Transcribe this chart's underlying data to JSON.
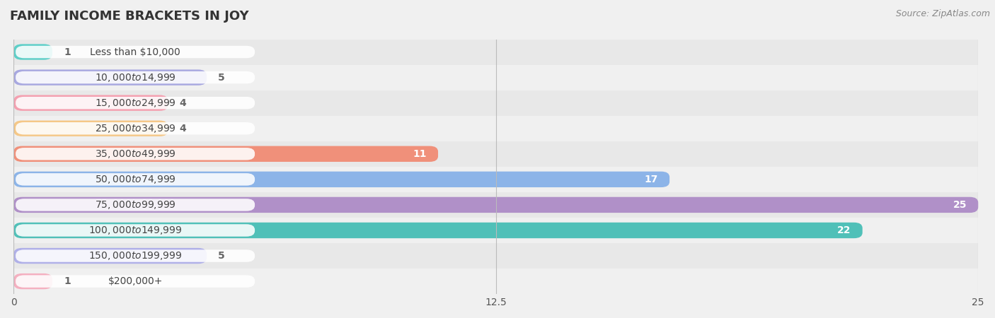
{
  "title": "FAMILY INCOME BRACKETS IN JOY",
  "source": "Source: ZipAtlas.com",
  "categories": [
    "Less than $10,000",
    "$10,000 to $14,999",
    "$15,000 to $24,999",
    "$25,000 to $34,999",
    "$35,000 to $49,999",
    "$50,000 to $74,999",
    "$75,000 to $99,999",
    "$100,000 to $149,999",
    "$150,000 to $199,999",
    "$200,000+"
  ],
  "values": [
    1,
    5,
    4,
    4,
    11,
    17,
    25,
    22,
    5,
    1
  ],
  "colors": [
    "#5ecfc8",
    "#a8a8e0",
    "#f4a0b0",
    "#f5c888",
    "#f0907a",
    "#8cb4e8",
    "#b090c8",
    "#50c0b8",
    "#b0b0e8",
    "#f4b0c0"
  ],
  "xlim": [
    0,
    25
  ],
  "xticks": [
    0,
    12.5,
    25
  ],
  "bg_color": "#f0f0f0",
  "row_bg_colors": [
    "#e8e8e8",
    "#f0f0f0"
  ],
  "label_color_inside": "#ffffff",
  "label_color_outside": "#666666",
  "title_fontsize": 13,
  "label_fontsize": 10,
  "tick_fontsize": 10,
  "cat_fontsize": 10,
  "source_fontsize": 9
}
